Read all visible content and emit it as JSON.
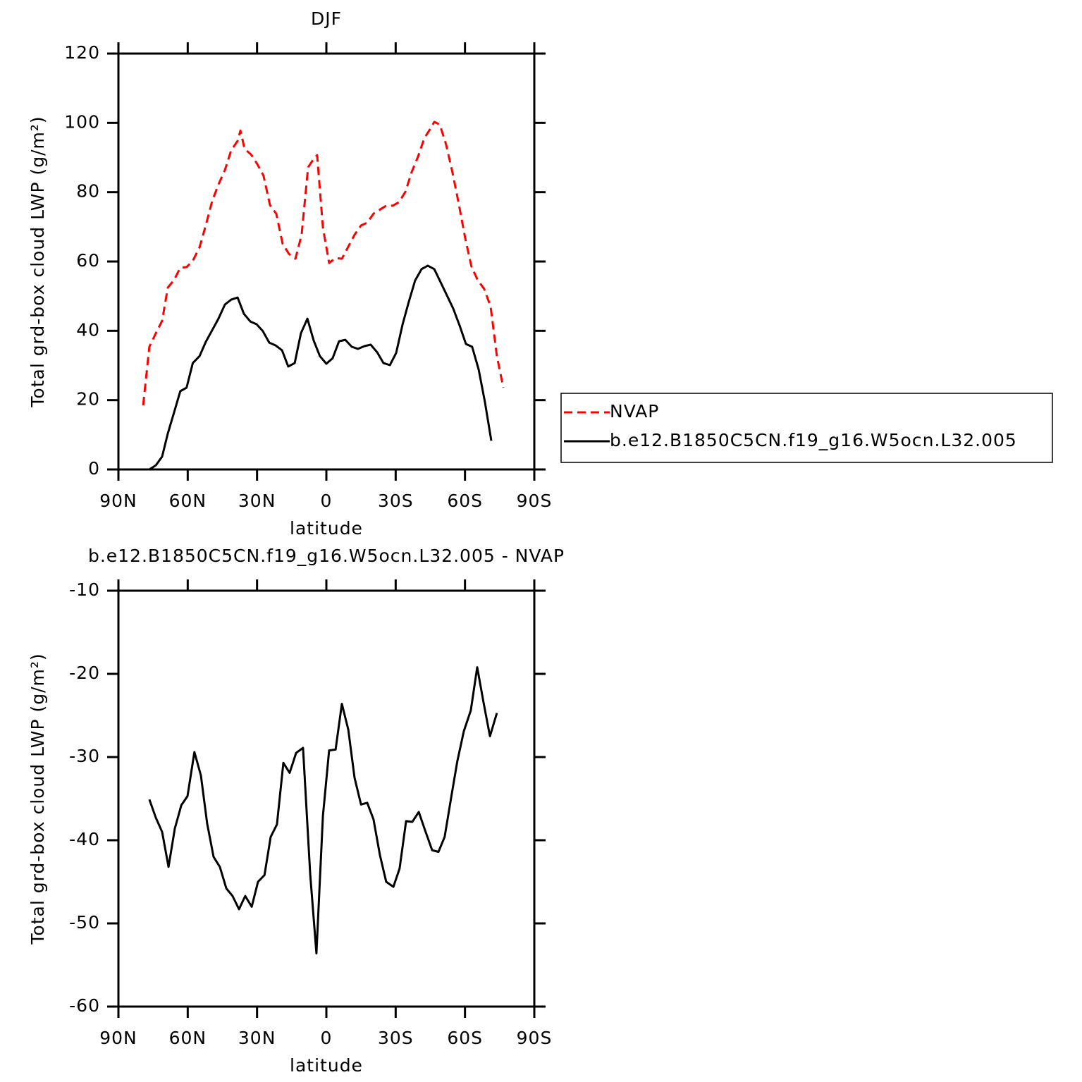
{
  "chart_data": [
    {
      "type": "line",
      "title": "DJF",
      "xlabel": "latitude",
      "ylabel": "Total grd-box cloud LWP (g/m²)",
      "xlim": [
        90,
        -90
      ],
      "xticks": [
        {
          "value": 90,
          "label": "90N"
        },
        {
          "value": 60,
          "label": "60N"
        },
        {
          "value": 30,
          "label": "30N"
        },
        0,
        {
          "value": -30,
          "label": "30S"
        },
        {
          "value": -60,
          "label": "60S"
        },
        {
          "value": -90,
          "label": "90S"
        }
      ],
      "ylim": [
        0,
        120
      ],
      "yticks": [
        0,
        20,
        40,
        60,
        80,
        100,
        120
      ],
      "legend": "right",
      "series": [
        {
          "name": "NVAP",
          "color": "#ff0000",
          "dash": "dashed",
          "x": [
            79.3,
            76.6,
            73.8,
            71.1,
            68.6,
            65.9,
            63.2,
            60.5,
            57.8,
            54.9,
            52.2,
            49.5,
            46.7,
            43.9,
            41.2,
            38.4,
            37.2,
            35.4,
            32.6,
            29.9,
            27.2,
            24.4,
            21.7,
            18.9,
            16.2,
            13.4,
            10.7,
            7.9,
            5.2,
            4.0,
            1.5,
            -1.2,
            -4.0,
            -6.7,
            -9.5,
            -12.2,
            -15.0,
            -17.7,
            -20.4,
            -23.2,
            -25.9,
            -28.7,
            -31.4,
            -34.2,
            -36.9,
            -39.7,
            -42.4,
            -45.1,
            -46.7,
            -49.1,
            -51.8,
            -54.6,
            -57.3,
            -60.1,
            -62.8,
            -65.6,
            -68.3,
            -71.1,
            -73.8,
            -76.6
          ],
          "values": [
            18.5,
            35.4,
            39.3,
            42.9,
            52.5,
            54.7,
            58.2,
            58.4,
            60.2,
            64.1,
            70.4,
            77.3,
            82.2,
            86.4,
            92.1,
            94.8,
            97.8,
            92.5,
            90.9,
            88.1,
            84.8,
            76.3,
            73.8,
            65.1,
            62.2,
            60.8,
            67.7,
            87.2,
            89.9,
            90.7,
            69.8,
            59.6,
            61.0,
            60.8,
            64.3,
            67.7,
            70.4,
            71.2,
            73.8,
            75.0,
            76.1,
            76.1,
            77.1,
            80.1,
            85.8,
            90.3,
            95.6,
            98.4,
            100.3,
            99.5,
            93.8,
            85.6,
            76.7,
            66.7,
            58.6,
            54.5,
            52.1,
            47.0,
            32.7,
            23.6
          ]
        },
        {
          "name": "b.e12.B1850C5CN.f19_g16.W5ocn.L32.005",
          "color": "#000000",
          "dash": "solid",
          "x": [
            79.3,
            76.6,
            73.8,
            71.1,
            68.6,
            65.9,
            63.2,
            60.5,
            57.8,
            54.9,
            52.2,
            49.5,
            46.7,
            43.9,
            41.2,
            38.4,
            35.7,
            32.9,
            30.2,
            27.5,
            24.7,
            22.0,
            19.2,
            16.5,
            13.7,
            11.0,
            8.2,
            5.5,
            2.8,
            0.0,
            -2.7,
            -5.5,
            -8.2,
            -11.0,
            -13.7,
            -16.5,
            -19.2,
            -22.0,
            -24.7,
            -27.5,
            -30.2,
            -33.0,
            -35.7,
            -38.4,
            -41.2,
            -43.9,
            -46.7,
            -49.4,
            -52.2,
            -54.9,
            -57.7,
            -60.4,
            -63.1,
            -65.9,
            -68.6,
            -71.4
          ],
          "values": [
            0,
            0,
            1.2,
            3.7,
            10.4,
            16.5,
            22.6,
            23.6,
            30.7,
            32.7,
            36.8,
            40.1,
            43.5,
            47.6,
            49.0,
            49.6,
            44.9,
            42.7,
            41.9,
            39.9,
            36.6,
            35.8,
            34.4,
            29.7,
            30.7,
            39.3,
            43.5,
            37.2,
            32.7,
            30.5,
            32.1,
            37.0,
            37.4,
            35.4,
            34.8,
            35.6,
            36.0,
            33.8,
            30.7,
            30.1,
            33.6,
            41.9,
            48.4,
            54.5,
            57.8,
            58.8,
            57.8,
            54.1,
            50.2,
            46.4,
            41.5,
            36.2,
            35.4,
            28.9,
            19.5,
            8.3
          ]
        }
      ]
    },
    {
      "type": "line",
      "title": "b.e12.B1850C5CN.f19_g16.W5ocn.L32.005 - NVAP",
      "xlabel": "latitude",
      "ylabel": "Total grd-box cloud LWP (g/m²)",
      "xlim": [
        90,
        -90
      ],
      "xticks": [
        {
          "value": 90,
          "label": "90N"
        },
        {
          "value": 60,
          "label": "60N"
        },
        {
          "value": 30,
          "label": "30N"
        },
        0,
        {
          "value": -30,
          "label": "30S"
        },
        {
          "value": -60,
          "label": "60S"
        },
        {
          "value": -90,
          "label": "90S"
        }
      ],
      "ylim": [
        -60,
        -10
      ],
      "yticks": [
        -60,
        -50,
        -40,
        -30,
        -20,
        -10
      ],
      "series": [
        {
          "color": "#000000",
          "dash": "solid",
          "x": [
            76.6,
            73.8,
            71.1,
            68.3,
            65.6,
            62.8,
            60.1,
            57.1,
            54.3,
            51.6,
            48.8,
            46.1,
            43.3,
            40.6,
            37.8,
            35.1,
            32.3,
            29.6,
            26.8,
            24.1,
            21.4,
            18.6,
            15.9,
            13.1,
            10.1,
            7.0,
            4.3,
            1.5,
            -1.2,
            -4.0,
            -6.7,
            -9.5,
            -12.2,
            -15.0,
            -17.7,
            -20.4,
            -23.2,
            -25.9,
            -29.0,
            -31.7,
            -34.5,
            -37.2,
            -40.0,
            -42.7,
            -45.8,
            -48.5,
            -51.2,
            -54.0,
            -56.7,
            -59.5,
            -62.5,
            -65.3,
            -68.0,
            -70.8,
            -73.8
          ],
          "values": [
            -35.1,
            -37.3,
            -39.0,
            -43.2,
            -38.6,
            -35.8,
            -34.7,
            -29.4,
            -32.2,
            -38.0,
            -42.0,
            -43.2,
            -45.8,
            -46.7,
            -48.3,
            -46.7,
            -48.0,
            -45.0,
            -44.2,
            -39.6,
            -38.1,
            -30.7,
            -31.9,
            -29.5,
            -28.9,
            -44.1,
            -53.6,
            -37.1,
            -29.2,
            -29.1,
            -23.6,
            -26.7,
            -32.5,
            -35.7,
            -35.5,
            -37.5,
            -41.8,
            -45.0,
            -45.6,
            -43.4,
            -37.7,
            -37.8,
            -36.6,
            -38.8,
            -41.2,
            -41.4,
            -39.6,
            -34.9,
            -30.5,
            -26.9,
            -24.4,
            -19.2,
            -23.4,
            -27.5,
            -24.7
          ]
        }
      ]
    }
  ]
}
